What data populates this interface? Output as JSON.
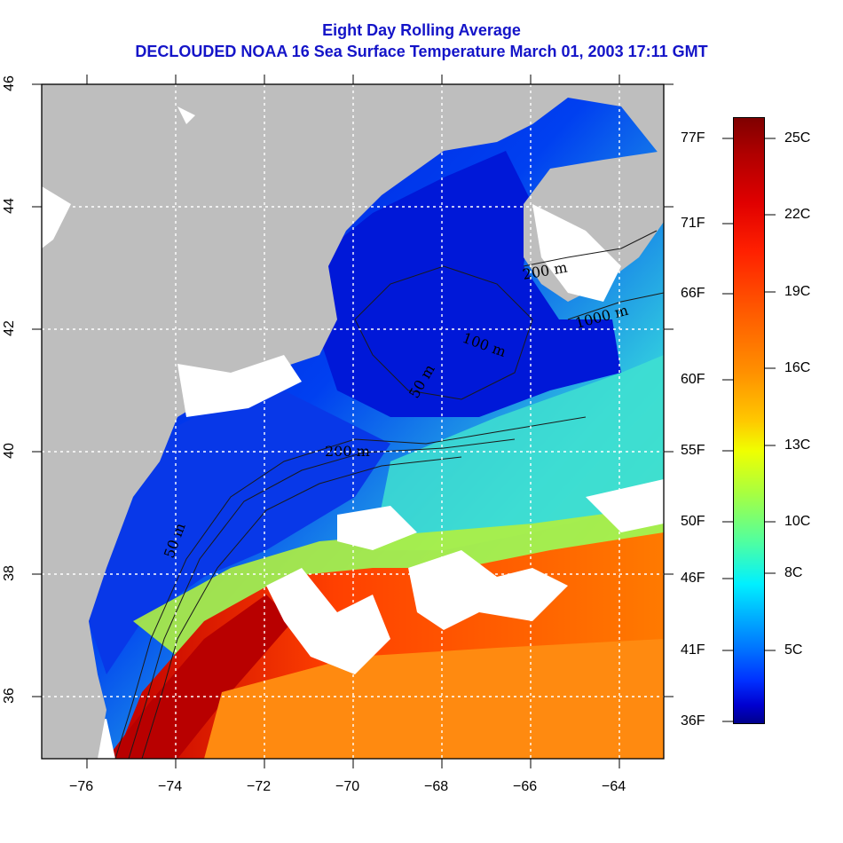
{
  "title": {
    "line1": "Eight Day Rolling Average",
    "line2": "DECLOUDED NOAA 16 Sea Surface Temperature March 01, 2003 17:11 GMT"
  },
  "axes": {
    "x_ticks": [
      "−76",
      "−74",
      "−72",
      "−70",
      "−68",
      "−66",
      "−64"
    ],
    "y_ticks": [
      "36",
      "38",
      "40",
      "42",
      "44",
      "46"
    ]
  },
  "contour_labels": [
    "50 m",
    "200 m",
    "100 m",
    "50 m",
    "1000 m",
    "200 m",
    "1000 m"
  ],
  "colorbar": {
    "fahrenheit": [
      "77F",
      "71F",
      "66F",
      "60F",
      "55F",
      "50F",
      "46F",
      "41F",
      "36F"
    ],
    "celsius": [
      "25C",
      "22C",
      "19C",
      "16C",
      "13C",
      "10C",
      "8C",
      "5C"
    ]
  },
  "colors": {
    "land": "#bebebe",
    "cloud": "#ffffff",
    "cold": "#0000d0",
    "warm": "#e01000",
    "title": "#1414c8"
  }
}
